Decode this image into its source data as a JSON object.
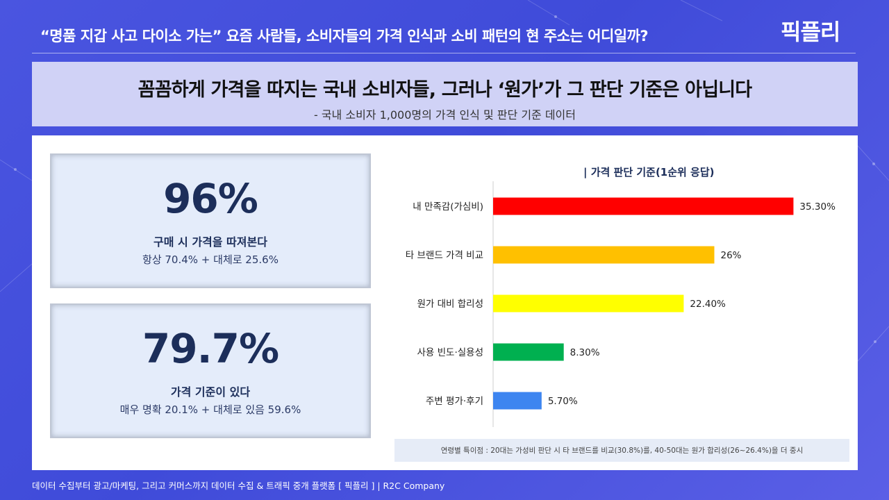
{
  "header": {
    "title": "“명품 지갑 사고 다이소 가는” 요즘 사람들, 소비자들의 가격 인식과 소비 패턴의 현 주소는 어디일까?",
    "logo": "픽플리"
  },
  "banner": {
    "title": "꼼꼼하게 가격을 따지는 국내 소비자들, 그러나 ‘원가’가 그 판단 기준은 아닙니다",
    "subtitle": "- 국내 소비자 1,000명의 가격 인식 및 판단 기준 데이터"
  },
  "stats": [
    {
      "value": "96%",
      "label": "구매 시 가격을 따져본다",
      "detail": "항상 70.4% + 대체로 25.6%"
    },
    {
      "value": "79.7%",
      "label": "가격 기준이 있다",
      "detail": "매우 명확 20.1% + 대체로 있음 59.6%"
    }
  ],
  "chart_title": "| 가격 판단 기준(1순위 응답)",
  "chart_data": {
    "type": "bar",
    "orientation": "horizontal",
    "title": "| 가격 판단 기준(1순위 응답)",
    "categories": [
      "내 만족감(가심비)",
      "타 브랜드 가격 비교",
      "원가 대비 합리성",
      "사용 빈도·실용성",
      "주변 평가·후기"
    ],
    "values": [
      35.3,
      26,
      22.4,
      8.3,
      5.7
    ],
    "value_labels": [
      "35.30%",
      "26%",
      "22.40%",
      "8.30%",
      "5.70%"
    ],
    "colors": [
      "#ff0000",
      "#ffc000",
      "#ffff00",
      "#00b050",
      "#3d85f0"
    ],
    "xlim": [
      0,
      40
    ],
    "grid": false,
    "legend": "none"
  },
  "note": "연령별 특이점 : 20대는 가성비 판단 시 타 브랜드를 비교(30.8%)를, 40-50대는 원가 합리성(26~26.4%)을 더 중시",
  "footer": "데이터 수집부터 광고/마케팅, 그리고 커머스까지 데이터 수집 & 트래픽 중개 플랫폼 [ 픽플리 ]  |  R2C Company"
}
